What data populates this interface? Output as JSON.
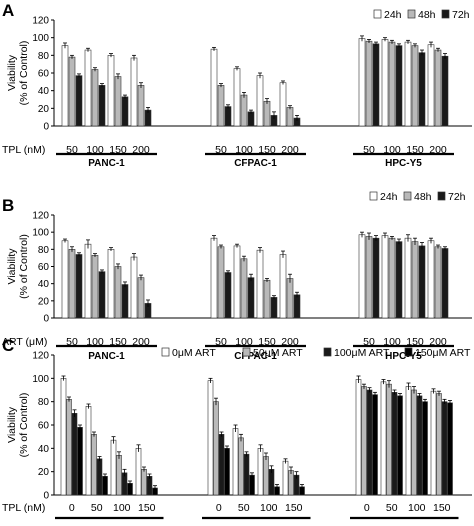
{
  "chart_data": [
    {
      "panel": "A",
      "type": "bar",
      "ylabel": [
        "Viability",
        "(% of Control)"
      ],
      "ylim": [
        0,
        120
      ],
      "yticks": [
        0,
        20,
        40,
        60,
        80,
        100,
        120
      ],
      "treatment_label": "TPL (nM)",
      "legend": [
        "24h",
        "48h",
        "72h"
      ],
      "legend_position": "top-right",
      "colors": [
        "#ffffff",
        "#b9b9b9",
        "#1a1a1a"
      ],
      "groups": [
        {
          "name": "PANC-1",
          "doses": [
            "50",
            "100",
            "150",
            "200"
          ],
          "values": [
            [
              91,
              78,
              57
            ],
            [
              86,
              64,
              46
            ],
            [
              80,
              56,
              33
            ],
            [
              77,
              46,
              18
            ]
          ],
          "errors": [
            [
              3,
              2,
              2
            ],
            [
              2,
              2,
              2
            ],
            [
              2,
              3,
              2
            ],
            [
              3,
              3,
              3
            ]
          ]
        },
        {
          "name": "CFPAC-1",
          "doses": [
            "50",
            "100",
            "150",
            "200"
          ],
          "values": [
            [
              87,
              46,
              22
            ],
            [
              65,
              35,
              16
            ],
            [
              57,
              28,
              12
            ],
            [
              49,
              21,
              9
            ]
          ],
          "errors": [
            [
              2,
              2,
              2
            ],
            [
              2,
              3,
              2
            ],
            [
              3,
              3,
              4
            ],
            [
              2,
              2,
              3
            ]
          ]
        },
        {
          "name": "HPC-Y5",
          "doses": [
            "50",
            "100",
            "150",
            "200"
          ],
          "values": [
            [
              99,
              96,
              93
            ],
            [
              98,
              95,
              91
            ],
            [
              95,
              91,
              83
            ],
            [
              92,
              86,
              79
            ]
          ],
          "errors": [
            [
              3,
              2,
              2
            ],
            [
              2,
              2,
              2
            ],
            [
              2,
              2,
              3
            ],
            [
              3,
              2,
              3
            ]
          ]
        }
      ]
    },
    {
      "panel": "B",
      "type": "bar",
      "ylabel": [
        "Viability",
        "(% of Control)"
      ],
      "ylim": [
        0,
        120
      ],
      "yticks": [
        0,
        20,
        40,
        60,
        80,
        100,
        120
      ],
      "treatment_label": "ART (μM)",
      "legend": [
        "24h",
        "48h",
        "72h"
      ],
      "legend_position": "top-right",
      "colors": [
        "#ffffff",
        "#b9b9b9",
        "#1a1a1a"
      ],
      "groups": [
        {
          "name": "PANC-1",
          "doses": [
            "50",
            "100",
            "150",
            "200"
          ],
          "values": [
            [
              90,
              80,
              74
            ],
            [
              86,
              73,
              54
            ],
            [
              80,
              60,
              39
            ],
            [
              71,
              47,
              17
            ]
          ],
          "errors": [
            [
              2,
              3,
              2
            ],
            [
              5,
              2,
              2
            ],
            [
              2,
              3,
              3
            ],
            [
              4,
              3,
              4
            ]
          ]
        },
        {
          "name": "CFPAC-1",
          "doses": [
            "50",
            "100",
            "150",
            "200"
          ],
          "values": [
            [
              93,
              83,
              53
            ],
            [
              84,
              69,
              47
            ],
            [
              79,
              44,
              24
            ],
            [
              74,
              46,
              27
            ]
          ],
          "errors": [
            [
              3,
              2,
              2
            ],
            [
              2,
              3,
              4
            ],
            [
              3,
              2,
              2
            ],
            [
              4,
              5,
              3
            ]
          ]
        },
        {
          "name": "HPC-Y5",
          "doses": [
            "50",
            "100",
            "150",
            "200"
          ],
          "values": [
            [
              97,
              95,
              93
            ],
            [
              96,
              93,
              89
            ],
            [
              93,
              89,
              84
            ],
            [
              90,
              83,
              81
            ]
          ],
          "errors": [
            [
              3,
              4,
              3
            ],
            [
              3,
              2,
              3
            ],
            [
              4,
              4,
              4
            ],
            [
              3,
              2,
              2
            ]
          ]
        }
      ]
    },
    {
      "panel": "C",
      "type": "bar",
      "ylabel": [
        "Viability",
        "(% of Control)"
      ],
      "ylim": [
        0,
        120
      ],
      "yticks": [
        0,
        20,
        40,
        60,
        80,
        100,
        120
      ],
      "treatment_label": "TPL (nM)",
      "legend": [
        "0μM ART",
        "50μM ART",
        "100μM ART",
        "150μM ART"
      ],
      "legend_position": "top-right",
      "colors": [
        "#ffffff",
        "#b9b9b9",
        "#1a1a1a",
        "#000000"
      ],
      "groups": [
        {
          "name": "",
          "doses": [
            "0",
            "50",
            "100",
            "150"
          ],
          "values": [
            [
              100,
              82,
              70,
              58
            ],
            [
              76,
              52,
              31,
              16
            ],
            [
              47,
              34,
              19,
              10
            ],
            [
              40,
              22,
              16,
              6
            ]
          ],
          "errors": [
            [
              2,
              2,
              3,
              2
            ],
            [
              2,
              2,
              2,
              2
            ],
            [
              3,
              3,
              3,
              2
            ],
            [
              3,
              2,
              2,
              2
            ]
          ]
        },
        {
          "name": "",
          "doses": [
            "0",
            "50",
            "100",
            "150"
          ],
          "values": [
            [
              98,
              80,
              52,
              40
            ],
            [
              57,
              49,
              35,
              17
            ],
            [
              40,
              33,
              22,
              7
            ],
            [
              29,
              21,
              17,
              7
            ]
          ],
          "errors": [
            [
              2,
              3,
              2,
              2
            ],
            [
              3,
              3,
              2,
              2
            ],
            [
              3,
              3,
              3,
              2
            ],
            [
              2,
              3,
              3,
              2
            ]
          ]
        },
        {
          "name": "",
          "doses": [
            "0",
            "50",
            "100",
            "150"
          ],
          "values": [
            [
              99,
              93,
              90,
              86
            ],
            [
              97,
              95,
              88,
              85
            ],
            [
              93,
              90,
              85,
              80
            ],
            [
              89,
              87,
              80,
              79
            ]
          ],
          "errors": [
            [
              3,
              2,
              2,
              2
            ],
            [
              2,
              3,
              2,
              2
            ],
            [
              3,
              3,
              2,
              2
            ],
            [
              2,
              2,
              2,
              2
            ]
          ]
        }
      ]
    }
  ]
}
